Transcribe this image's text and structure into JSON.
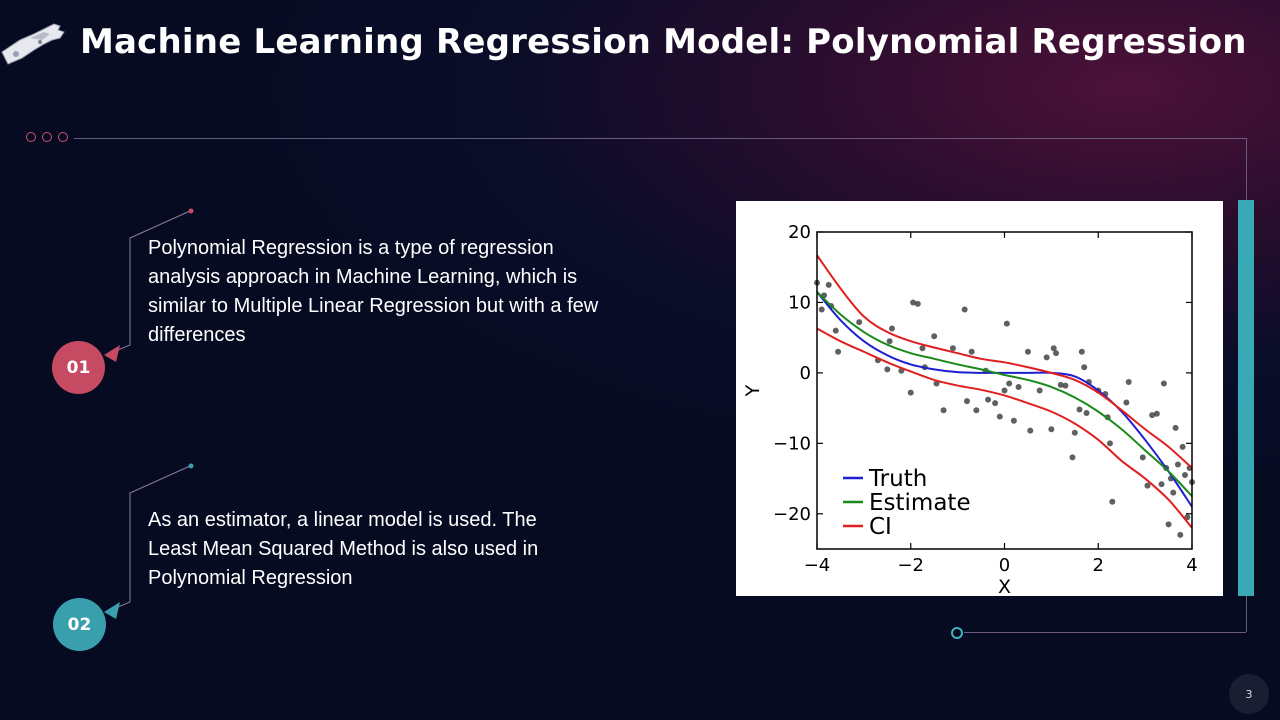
{
  "slide": {
    "title": "Machine Learning Regression Model: Polynomial Regression",
    "page_number": "3",
    "logo_icon": "robot-hand-icon"
  },
  "points": [
    {
      "number": "01",
      "text": "Polynomial Regression is a type of regression analysis approach in Machine Learning, which is similar to Multiple Linear Regression but with a few differences",
      "color": "#c74a63"
    },
    {
      "number": "02",
      "text": "As an estimator, a linear model is used. The Least Mean Squared Method is also used in Polynomial Regression",
      "color": "#3a9fac"
    }
  ],
  "chart_data": {
    "type": "line",
    "title": "",
    "xlabel": "X",
    "ylabel": "Y",
    "xlim": [
      -4,
      4
    ],
    "ylim": [
      -25,
      20
    ],
    "xticks": [
      -4,
      -2,
      0,
      2,
      4
    ],
    "yticks": [
      20,
      10,
      0,
      -10,
      -20
    ],
    "xtick_labels": [
      "−4",
      "−2",
      "0",
      "2",
      "4"
    ],
    "ytick_labels": [
      "20",
      "10",
      "0",
      "−10",
      "−20"
    ],
    "grid": false,
    "legend_position": "lower-left",
    "series": [
      {
        "name": "Truth",
        "color": "#1f1fd0",
        "x": [
          -4,
          -3.5,
          -3,
          -2.5,
          -2,
          -1.5,
          -1,
          -0.5,
          0,
          0.5,
          1,
          1.5,
          2,
          2.5,
          3,
          3.5,
          4
        ],
        "y": [
          11.5,
          7.5,
          4.5,
          2.5,
          1.2,
          0.5,
          0.1,
          0,
          0,
          0,
          0,
          -0.5,
          -2.5,
          -5.5,
          -9.5,
          -14,
          -19
        ]
      },
      {
        "name": "Estimate",
        "color": "#1a8a1a",
        "x": [
          -4,
          -3.5,
          -3,
          -2.5,
          -2,
          -1.5,
          -1,
          -0.5,
          0,
          0.5,
          1,
          1.5,
          2,
          2.5,
          3,
          3.5,
          4
        ],
        "y": [
          11.5,
          8.3,
          5.8,
          4.0,
          2.8,
          2.0,
          1.2,
          0.5,
          -0.3,
          -1,
          -2,
          -3.5,
          -5.5,
          -8,
          -11,
          -14,
          -17.5
        ]
      },
      {
        "name": "CI",
        "color": "#e02020",
        "x": [
          -4,
          -3.5,
          -3,
          -2.5,
          -2,
          -1.5,
          -1,
          -0.5,
          0,
          0.5,
          1,
          1.5,
          2,
          2.5,
          3,
          3.5,
          4
        ],
        "y": [
          16.7,
          12,
          8,
          5.8,
          4.5,
          3.6,
          2.8,
          2,
          1.5,
          0.8,
          0,
          -1,
          -2.8,
          -5.3,
          -8,
          -10.5,
          -13.5
        ]
      },
      {
        "name": "CI",
        "color": "#e02020",
        "show_in_legend": false,
        "x": [
          -4,
          -3.5,
          -3,
          -2.5,
          -2,
          -1.5,
          -1,
          -0.5,
          0,
          0.5,
          1,
          1.5,
          2,
          2.5,
          3,
          3.5,
          4
        ],
        "y": [
          6.3,
          4.5,
          3,
          1.5,
          0.2,
          -1,
          -1.8,
          -2.4,
          -3.2,
          -4.3,
          -5.5,
          -7.2,
          -9.5,
          -12.5,
          -15,
          -18,
          -22
        ]
      }
    ],
    "scatter": {
      "color": "#444444",
      "points": [
        [
          -4,
          12.8
        ],
        [
          -3.9,
          9.0
        ],
        [
          -3.85,
          11.0
        ],
        [
          -3.75,
          12.5
        ],
        [
          -3.7,
          9.5
        ],
        [
          -3.6,
          6.0
        ],
        [
          -3.55,
          3.0
        ],
        [
          -3.1,
          7.2
        ],
        [
          -2.7,
          1.8
        ],
        [
          -2.5,
          0.5
        ],
        [
          -2.45,
          4.5
        ],
        [
          -2.4,
          6.3
        ],
        [
          -2.2,
          0.3
        ],
        [
          -2.0,
          -2.8
        ],
        [
          -1.95,
          10.0
        ],
        [
          -1.85,
          9.8
        ],
        [
          -1.75,
          3.5
        ],
        [
          -1.7,
          0.8
        ],
        [
          -1.5,
          5.2
        ],
        [
          -1.45,
          -1.5
        ],
        [
          -1.3,
          -5.3
        ],
        [
          -1.1,
          3.5
        ],
        [
          -0.85,
          9.0
        ],
        [
          -0.8,
          -4.0
        ],
        [
          -0.7,
          3.0
        ],
        [
          -0.6,
          -5.3
        ],
        [
          -0.4,
          0.3
        ],
        [
          -0.35,
          -3.8
        ],
        [
          -0.2,
          -4.3
        ],
        [
          -0.1,
          -6.2
        ],
        [
          0.05,
          7.0
        ],
        [
          0.0,
          -2.5
        ],
        [
          0.1,
          -1.5
        ],
        [
          0.2,
          -6.8
        ],
        [
          0.3,
          -2.0
        ],
        [
          0.5,
          3.0
        ],
        [
          0.55,
          -8.2
        ],
        [
          0.75,
          -2.5
        ],
        [
          0.9,
          2.2
        ],
        [
          1.0,
          -8.0
        ],
        [
          1.05,
          3.5
        ],
        [
          1.1,
          2.8
        ],
        [
          1.2,
          -1.7
        ],
        [
          1.3,
          -1.8
        ],
        [
          1.45,
          -12.0
        ],
        [
          1.5,
          -8.5
        ],
        [
          1.6,
          -5.2
        ],
        [
          1.65,
          3.0
        ],
        [
          1.7,
          0.8
        ],
        [
          1.75,
          -5.7
        ],
        [
          1.8,
          -1.3
        ],
        [
          2.0,
          -2.5
        ],
        [
          2.15,
          -3.0
        ],
        [
          2.2,
          -6.3
        ],
        [
          2.25,
          -10.0
        ],
        [
          2.3,
          -18.3
        ],
        [
          2.6,
          -4.2
        ],
        [
          2.65,
          -1.3
        ],
        [
          2.95,
          -12.0
        ],
        [
          3.05,
          -16.0
        ],
        [
          3.15,
          -6.0
        ],
        [
          3.25,
          -5.8
        ],
        [
          3.35,
          -15.8
        ],
        [
          3.4,
          -1.5
        ],
        [
          3.45,
          -13.5
        ],
        [
          3.5,
          -21.5
        ],
        [
          3.55,
          -15.0
        ],
        [
          3.6,
          -17.0
        ],
        [
          3.65,
          -7.8
        ],
        [
          3.7,
          -13.0
        ],
        [
          3.75,
          -23.0
        ],
        [
          3.8,
          -10.5
        ],
        [
          3.85,
          -14.5
        ],
        [
          3.9,
          -20.5
        ],
        [
          3.95,
          -13.5
        ],
        [
          4.0,
          -15.5
        ]
      ]
    }
  }
}
